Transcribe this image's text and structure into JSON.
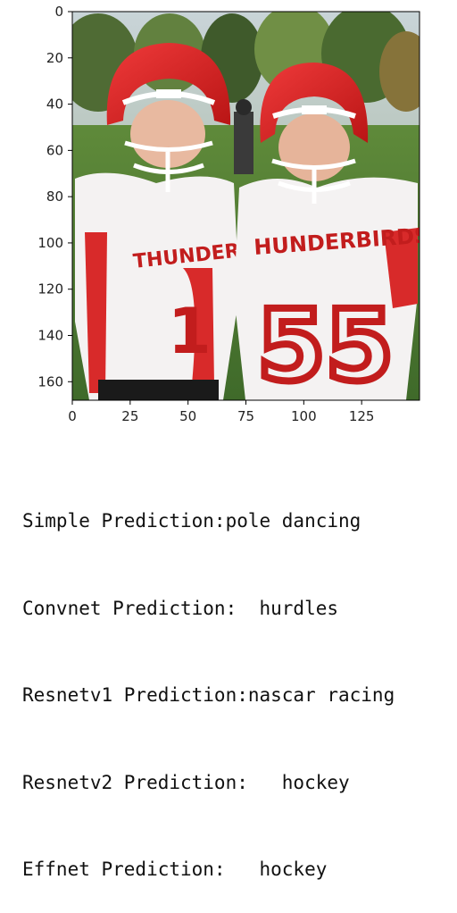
{
  "figure": {
    "image_description_icon": "football-players-photo-icon",
    "x_ticks": [
      "0",
      "25",
      "50",
      "75",
      "100",
      "125"
    ],
    "y_ticks": [
      "0",
      "20",
      "40",
      "60",
      "80",
      "100",
      "120",
      "140",
      "160"
    ],
    "x_tick_values": [
      0,
      25,
      50,
      75,
      100,
      125
    ],
    "y_tick_values": [
      0,
      20,
      40,
      60,
      80,
      100,
      120,
      140,
      160
    ],
    "x_range": [
      0,
      150
    ],
    "y_range": [
      0,
      168
    ]
  },
  "predictions": [
    "Simple Prediction:pole dancing",
    "Convnet Prediction:  hurdles",
    "Resnetv1 Prediction:nascar racing",
    "Resnetv2 Prediction:   hockey",
    "Effnet Prediction:   hockey"
  ]
}
